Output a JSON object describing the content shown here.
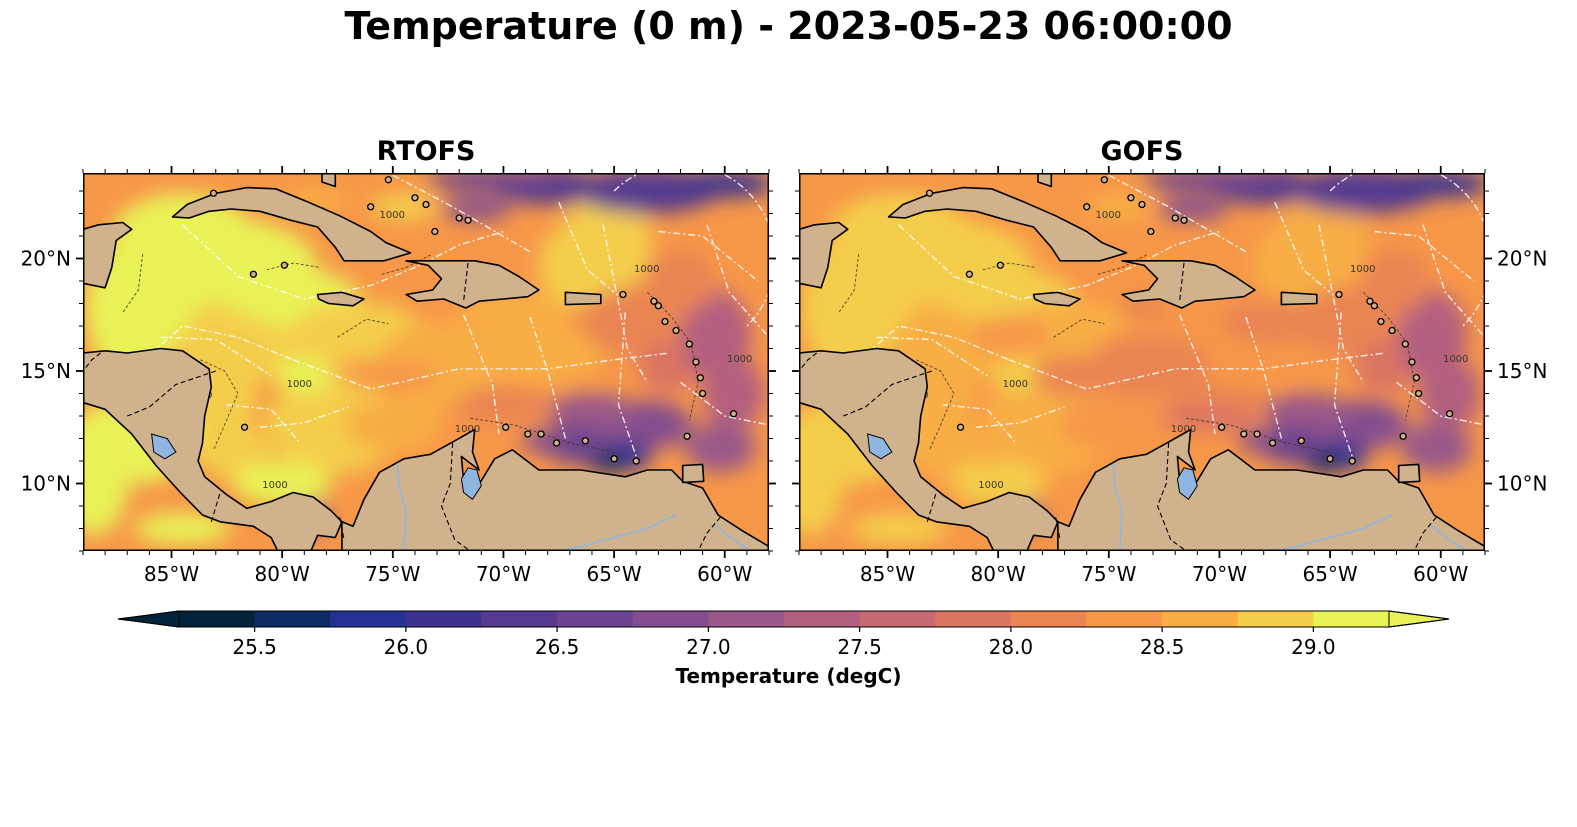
{
  "figure": {
    "title": "Temperature (0 m) - 2023-05-23 06:00:00"
  },
  "panels": [
    {
      "title": "RTOFS",
      "lat_tick_side": "left",
      "style": "warm"
    },
    {
      "title": "GOFS",
      "lat_tick_side": "right",
      "style": "cool"
    }
  ],
  "axes": {
    "lon_ticks": [
      "85°W",
      "80°W",
      "75°W",
      "70°W",
      "65°W",
      "60°W"
    ],
    "lon_values": [
      -85,
      -80,
      -75,
      -70,
      -65,
      -60
    ],
    "lat_ticks": [
      "20°N",
      "15°N",
      "10°N"
    ],
    "lat_values": [
      20,
      15,
      10
    ],
    "lon_range": [
      -89,
      -58
    ],
    "lat_range": [
      7,
      23.8
    ]
  },
  "contour_label": "1000",
  "colorbar": {
    "label": "Temperature (degC)",
    "vmin": 25.25,
    "vmax": 29.25,
    "step": 0.25,
    "extend": "both",
    "ticks": [
      "25.5",
      "26.0",
      "26.5",
      "27.0",
      "27.5",
      "28.0",
      "28.5",
      "29.0"
    ],
    "tick_values": [
      25.5,
      26.0,
      26.5,
      27.0,
      27.5,
      28.0,
      28.5,
      29.0
    ],
    "colors": [
      "#03233a",
      "#0c2d63",
      "#263194",
      "#3d3490",
      "#553a90",
      "#6b4390",
      "#834d8f",
      "#995889",
      "#b35f80",
      "#c76a73",
      "#da7463",
      "#ea8453",
      "#f79748",
      "#f8ae45",
      "#f4ce4b",
      "#e9f256"
    ],
    "under_color": "#03233a",
    "over_color": "#e9f256"
  },
  "colors": {
    "land": "#d0b28c",
    "lake": "#8fb6e0",
    "coast": "#000000"
  }
}
